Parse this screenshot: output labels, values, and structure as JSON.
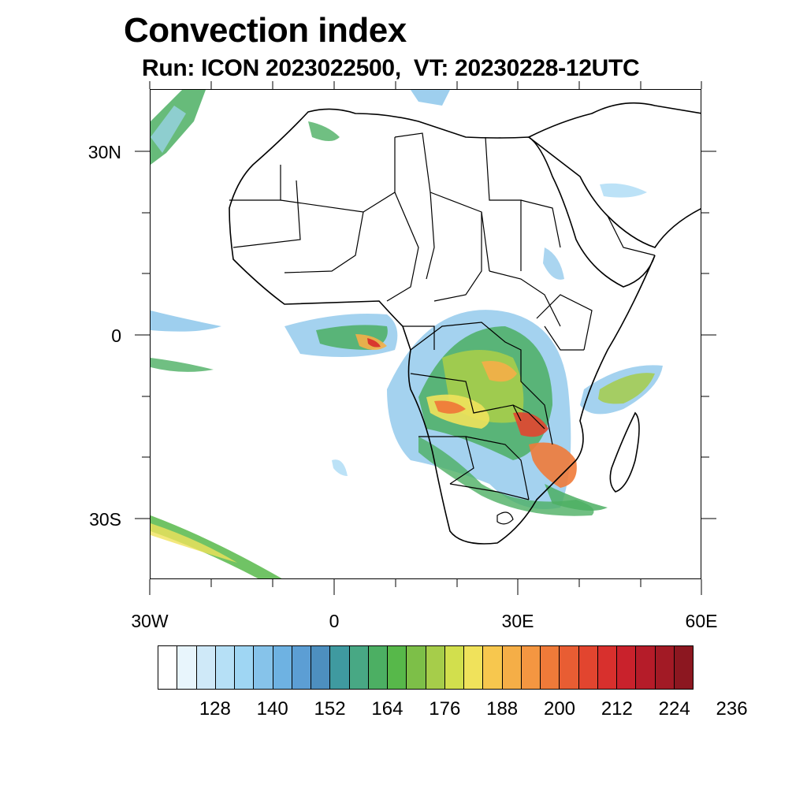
{
  "title": "Convection index",
  "subtitle": "Run: ICON 2023022500,  VT: 20230228-12UTC",
  "lat_labels": [
    "30N",
    "0",
    "30S"
  ],
  "lon_labels": [
    "30W",
    "0",
    "30E",
    "60E"
  ],
  "colorbar": {
    "labels": [
      "128",
      "140",
      "152",
      "164",
      "176",
      "188",
      "200",
      "212",
      "224",
      "236"
    ],
    "colors": [
      "#ffffff",
      "#e8f5fc",
      "#cfe9f8",
      "#b6e0f6",
      "#9fd6f3",
      "#86c3ea",
      "#6eb2e2",
      "#5c9ed4",
      "#4d8fbf",
      "#3f9aa0",
      "#48a884",
      "#4caf63",
      "#57b84a",
      "#7dbf48",
      "#a6cd4a",
      "#d2df4d",
      "#f0e25b",
      "#f7c74e",
      "#f5ae47",
      "#f49641",
      "#ef7a39",
      "#e85d33",
      "#e2452f",
      "#d8302d",
      "#c9222c",
      "#b51c29",
      "#a21a25",
      "#8c1720"
    ]
  },
  "map_extent": {
    "lon": [
      -30,
      60
    ],
    "lat": [
      -40,
      40
    ]
  }
}
